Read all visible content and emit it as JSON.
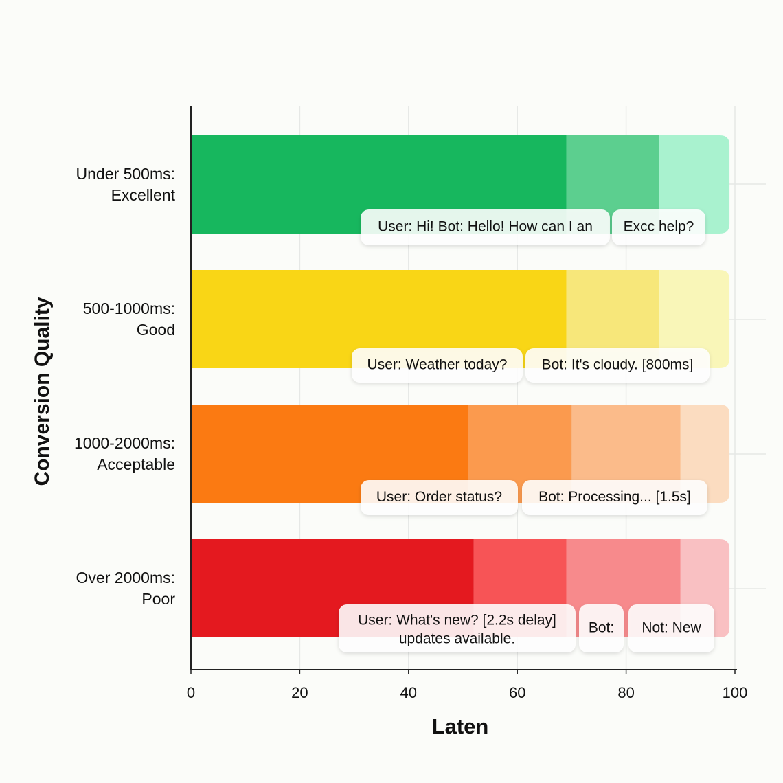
{
  "chart_data": {
    "type": "stacked-bar",
    "y_label": "Conversion Quality",
    "x_label": "Laten",
    "categories": [
      [
        "Under 500ms:",
        "Excellent"
      ],
      [
        "500-1000ms:",
        "Good"
      ],
      [
        "1000-2000ms:",
        "Acceptable"
      ],
      [
        "Over 2000ms:",
        "Poor"
      ]
    ],
    "rows": [
      {
        "values": [
          69,
          17,
          13
        ],
        "colors": [
          "#17b75e",
          "#5ccf8f",
          "#a9f2cf"
        ],
        "bubbles": [
          [
            "User: Hi! Bot: Hello! How can I an"
          ],
          [
            "Excc help?"
          ]
        ]
      },
      {
        "values": [
          69,
          17,
          13
        ],
        "colors": [
          "#f9d616",
          "#f7e77a",
          "#f9f6b8"
        ],
        "bubbles": [
          [
            "User: Weather today?"
          ],
          [
            "Bot: It's cloudy. [800ms]"
          ]
        ]
      },
      {
        "values": [
          51,
          19,
          20,
          9
        ],
        "colors": [
          "#fb7a12",
          "#fb9a4e",
          "#fbbb8a",
          "#fbdcc0"
        ],
        "bubbles": [
          [
            "User: Order status?"
          ],
          [
            "Bot: Processing... [1.5s]"
          ]
        ]
      },
      {
        "values": [
          52,
          17,
          21,
          9
        ],
        "colors": [
          "#e4191f",
          "#f75456",
          "#f78a8c",
          "#f9c0c2"
        ],
        "bubbles": [
          [
            "User: What's new? [2.2s delay]",
            "updates available."
          ],
          [
            "Bot:"
          ],
          [
            "Not: New"
          ]
        ]
      }
    ],
    "xlim": [
      0,
      100
    ],
    "xticks": [
      0,
      20,
      40,
      60,
      80,
      100
    ],
    "grid": true
  }
}
